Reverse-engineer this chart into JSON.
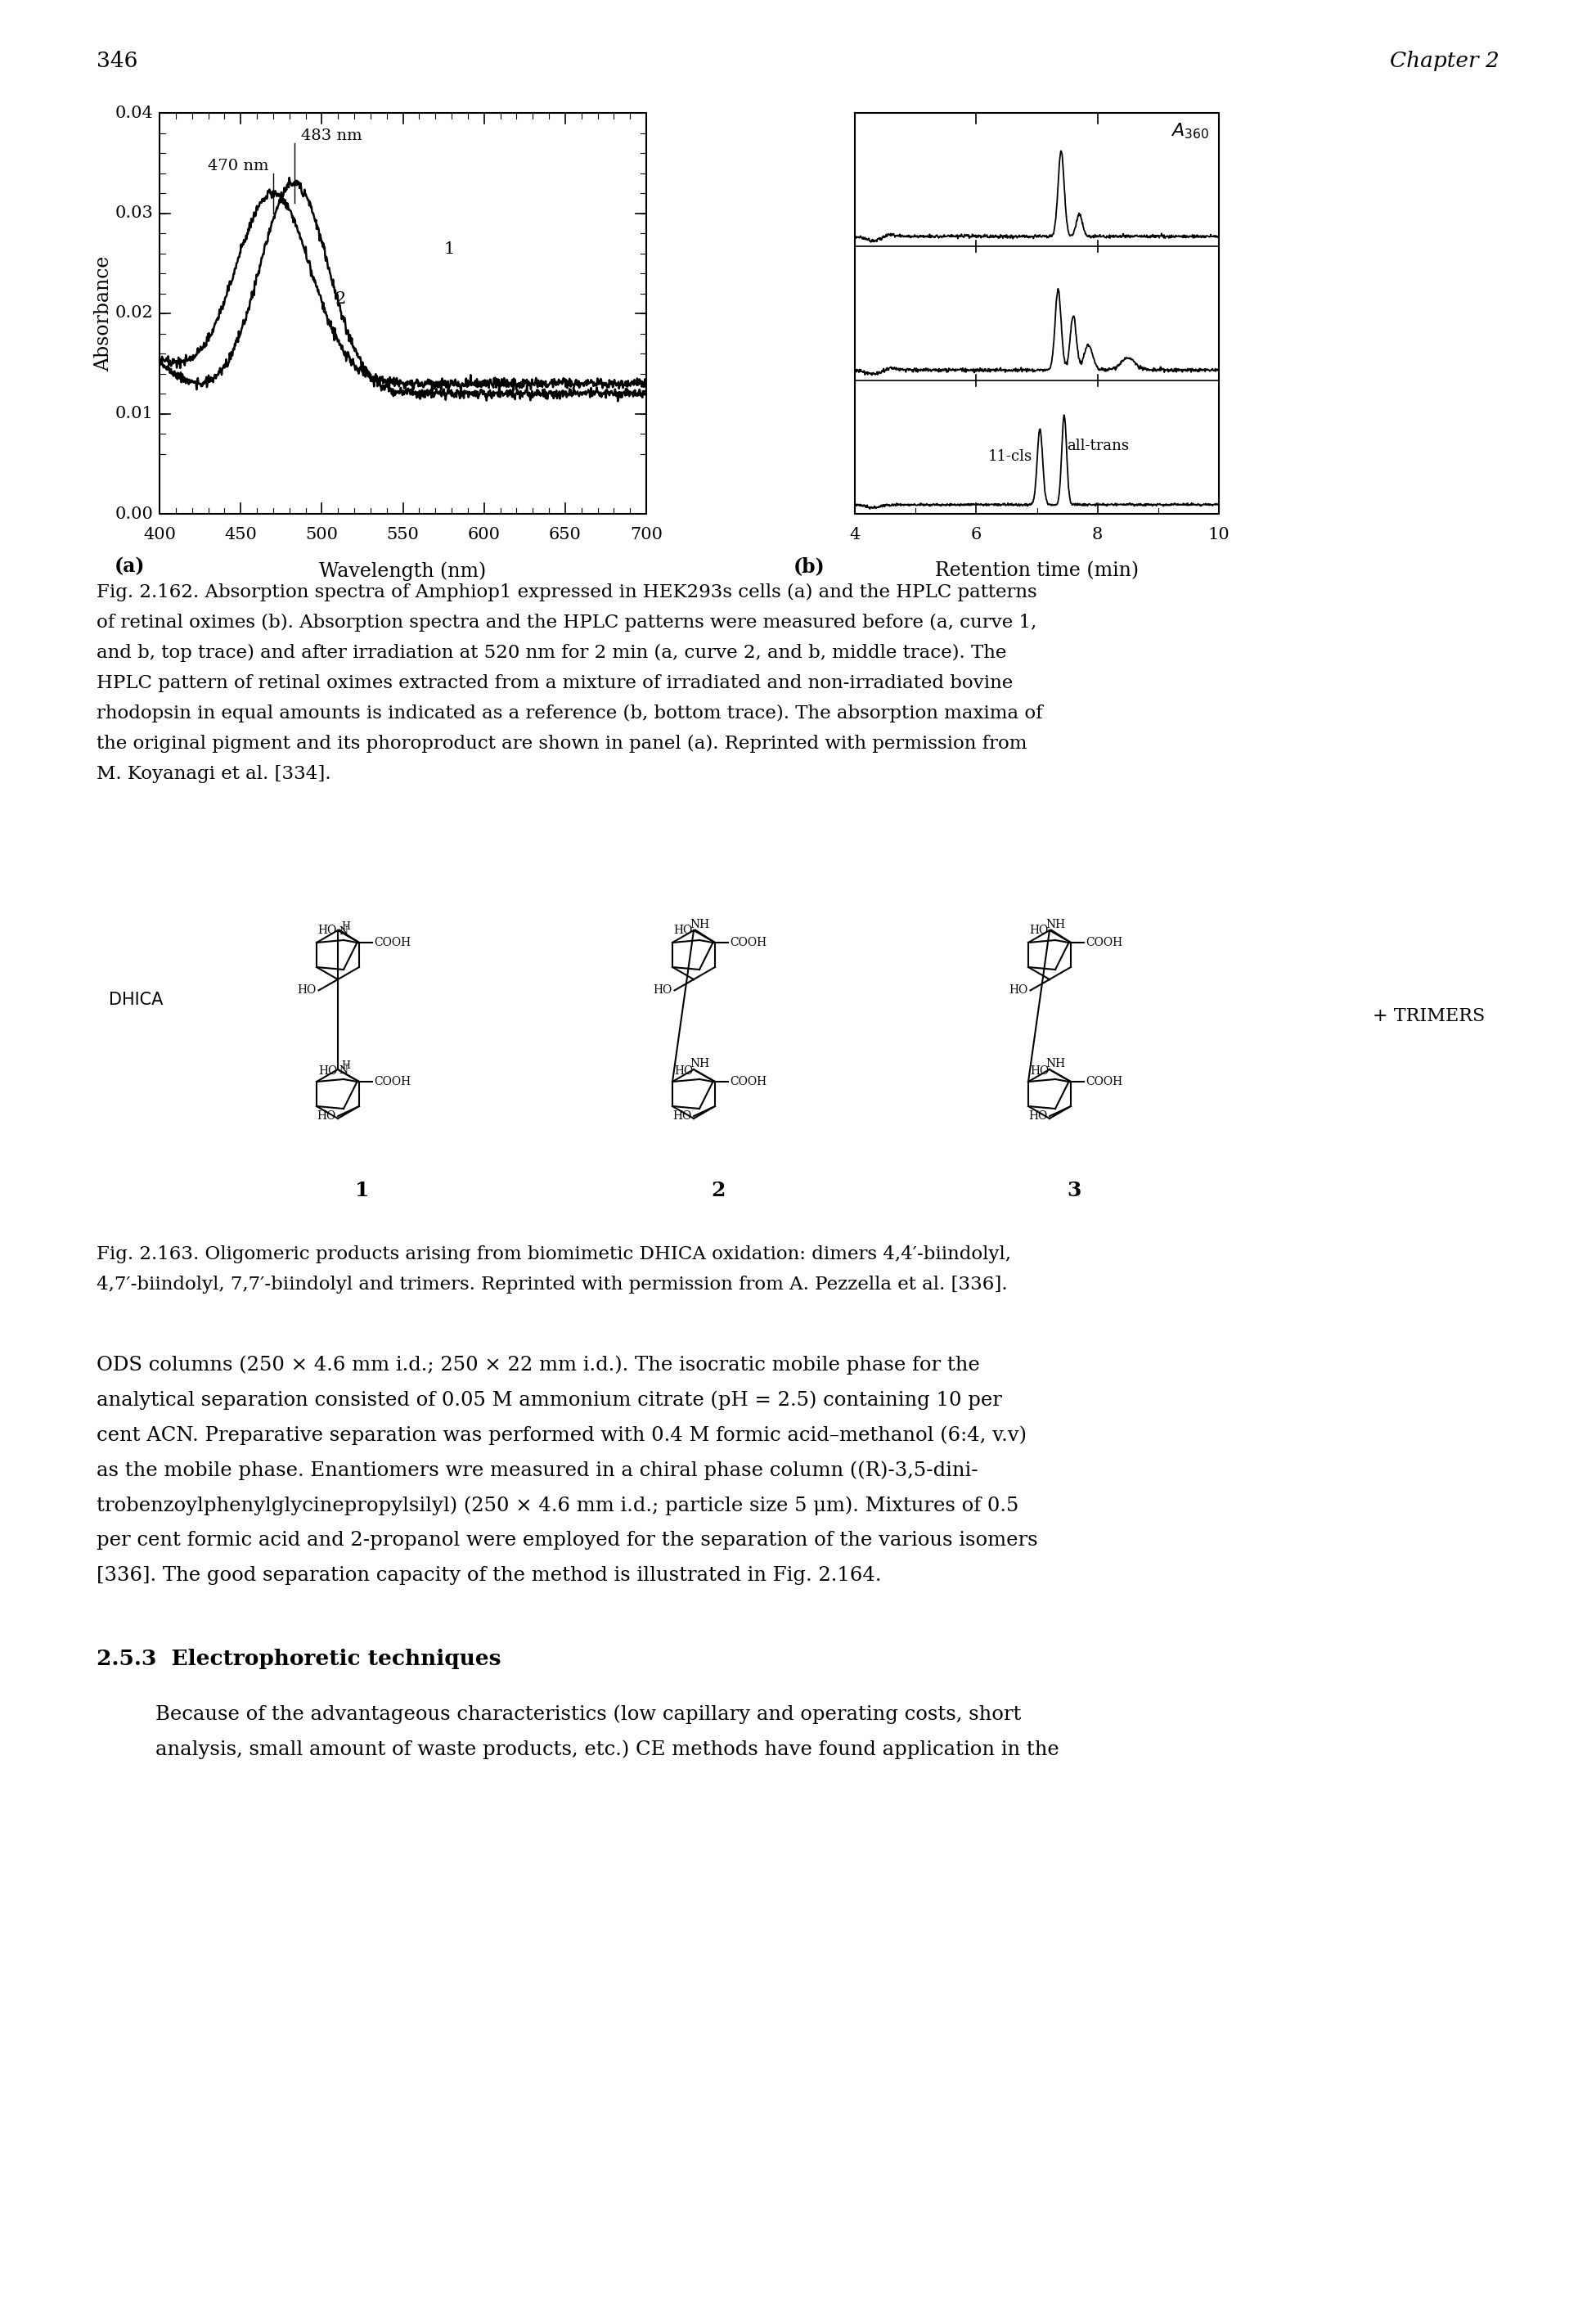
{
  "page_number": "346",
  "chapter": "Chapter 2",
  "fig162_caption_lines": [
    "Fig. 2.162. Absorption spectra of Amphiop1 expressed in HEK293s cells (a) and the HPLC patterns",
    "of retinal oximes (b). Absorption spectra and the HPLC patterns were measured before (a, curve 1,",
    "and b, top trace) and after irradiation at 520 nm for 2 min (a, curve 2, and b, middle trace). The",
    "HPLC pattern of retinal oximes extracted from a mixture of irradiated and non-irradiated bovine",
    "rhodopsin in equal amounts is indicated as a reference (b, bottom trace). The absorption maxima of",
    "the original pigment and its phoroproduct are shown in panel (a). Reprinted with permission from",
    "M. Koyanagi et al. [334]."
  ],
  "fig163_caption_lines": [
    "Fig. 2.163. Oligomeric products arising from biomimetic DHICA oxidation: dimers 4,4′-biindolyl,",
    "4,7′-biindolyl, 7,7′-biindolyl and trimers. Reprinted with permission from A. Pezzella et al. [336]."
  ],
  "body1_lines": [
    "ODS columns (250 × 4.6 mm i.d.; 250 × 22 mm i.d.). The isocratic mobile phase for the",
    "analytical separation consisted of 0.05 M ammonium citrate (pH = 2.5) containing 10 per",
    "cent ACN. Preparative separation was performed with 0.4 M formic acid–methanol (6:4, v.v)",
    "as the mobile phase. Enantiomers wre measured in a chiral phase column ((R)-3,5-dini-",
    "trobenzoylphenylglycinepropylsilyl) (250 × 4.6 mm i.d.; particle size 5 μm). Mixtures of 0.5",
    "per cent formic acid and 2-propanol were employed for the separation of the various isomers",
    "[336]. The good separation capacity of the method is illustrated in Fig. 2.164."
  ],
  "section_header": "2.5.3  Electrophoretic techniques",
  "body2_lines": [
    "Because of the advantageous characteristics (low capillary and operating costs, short",
    "analysis, small amount of waste products, etc.) CE methods have found application in the"
  ]
}
